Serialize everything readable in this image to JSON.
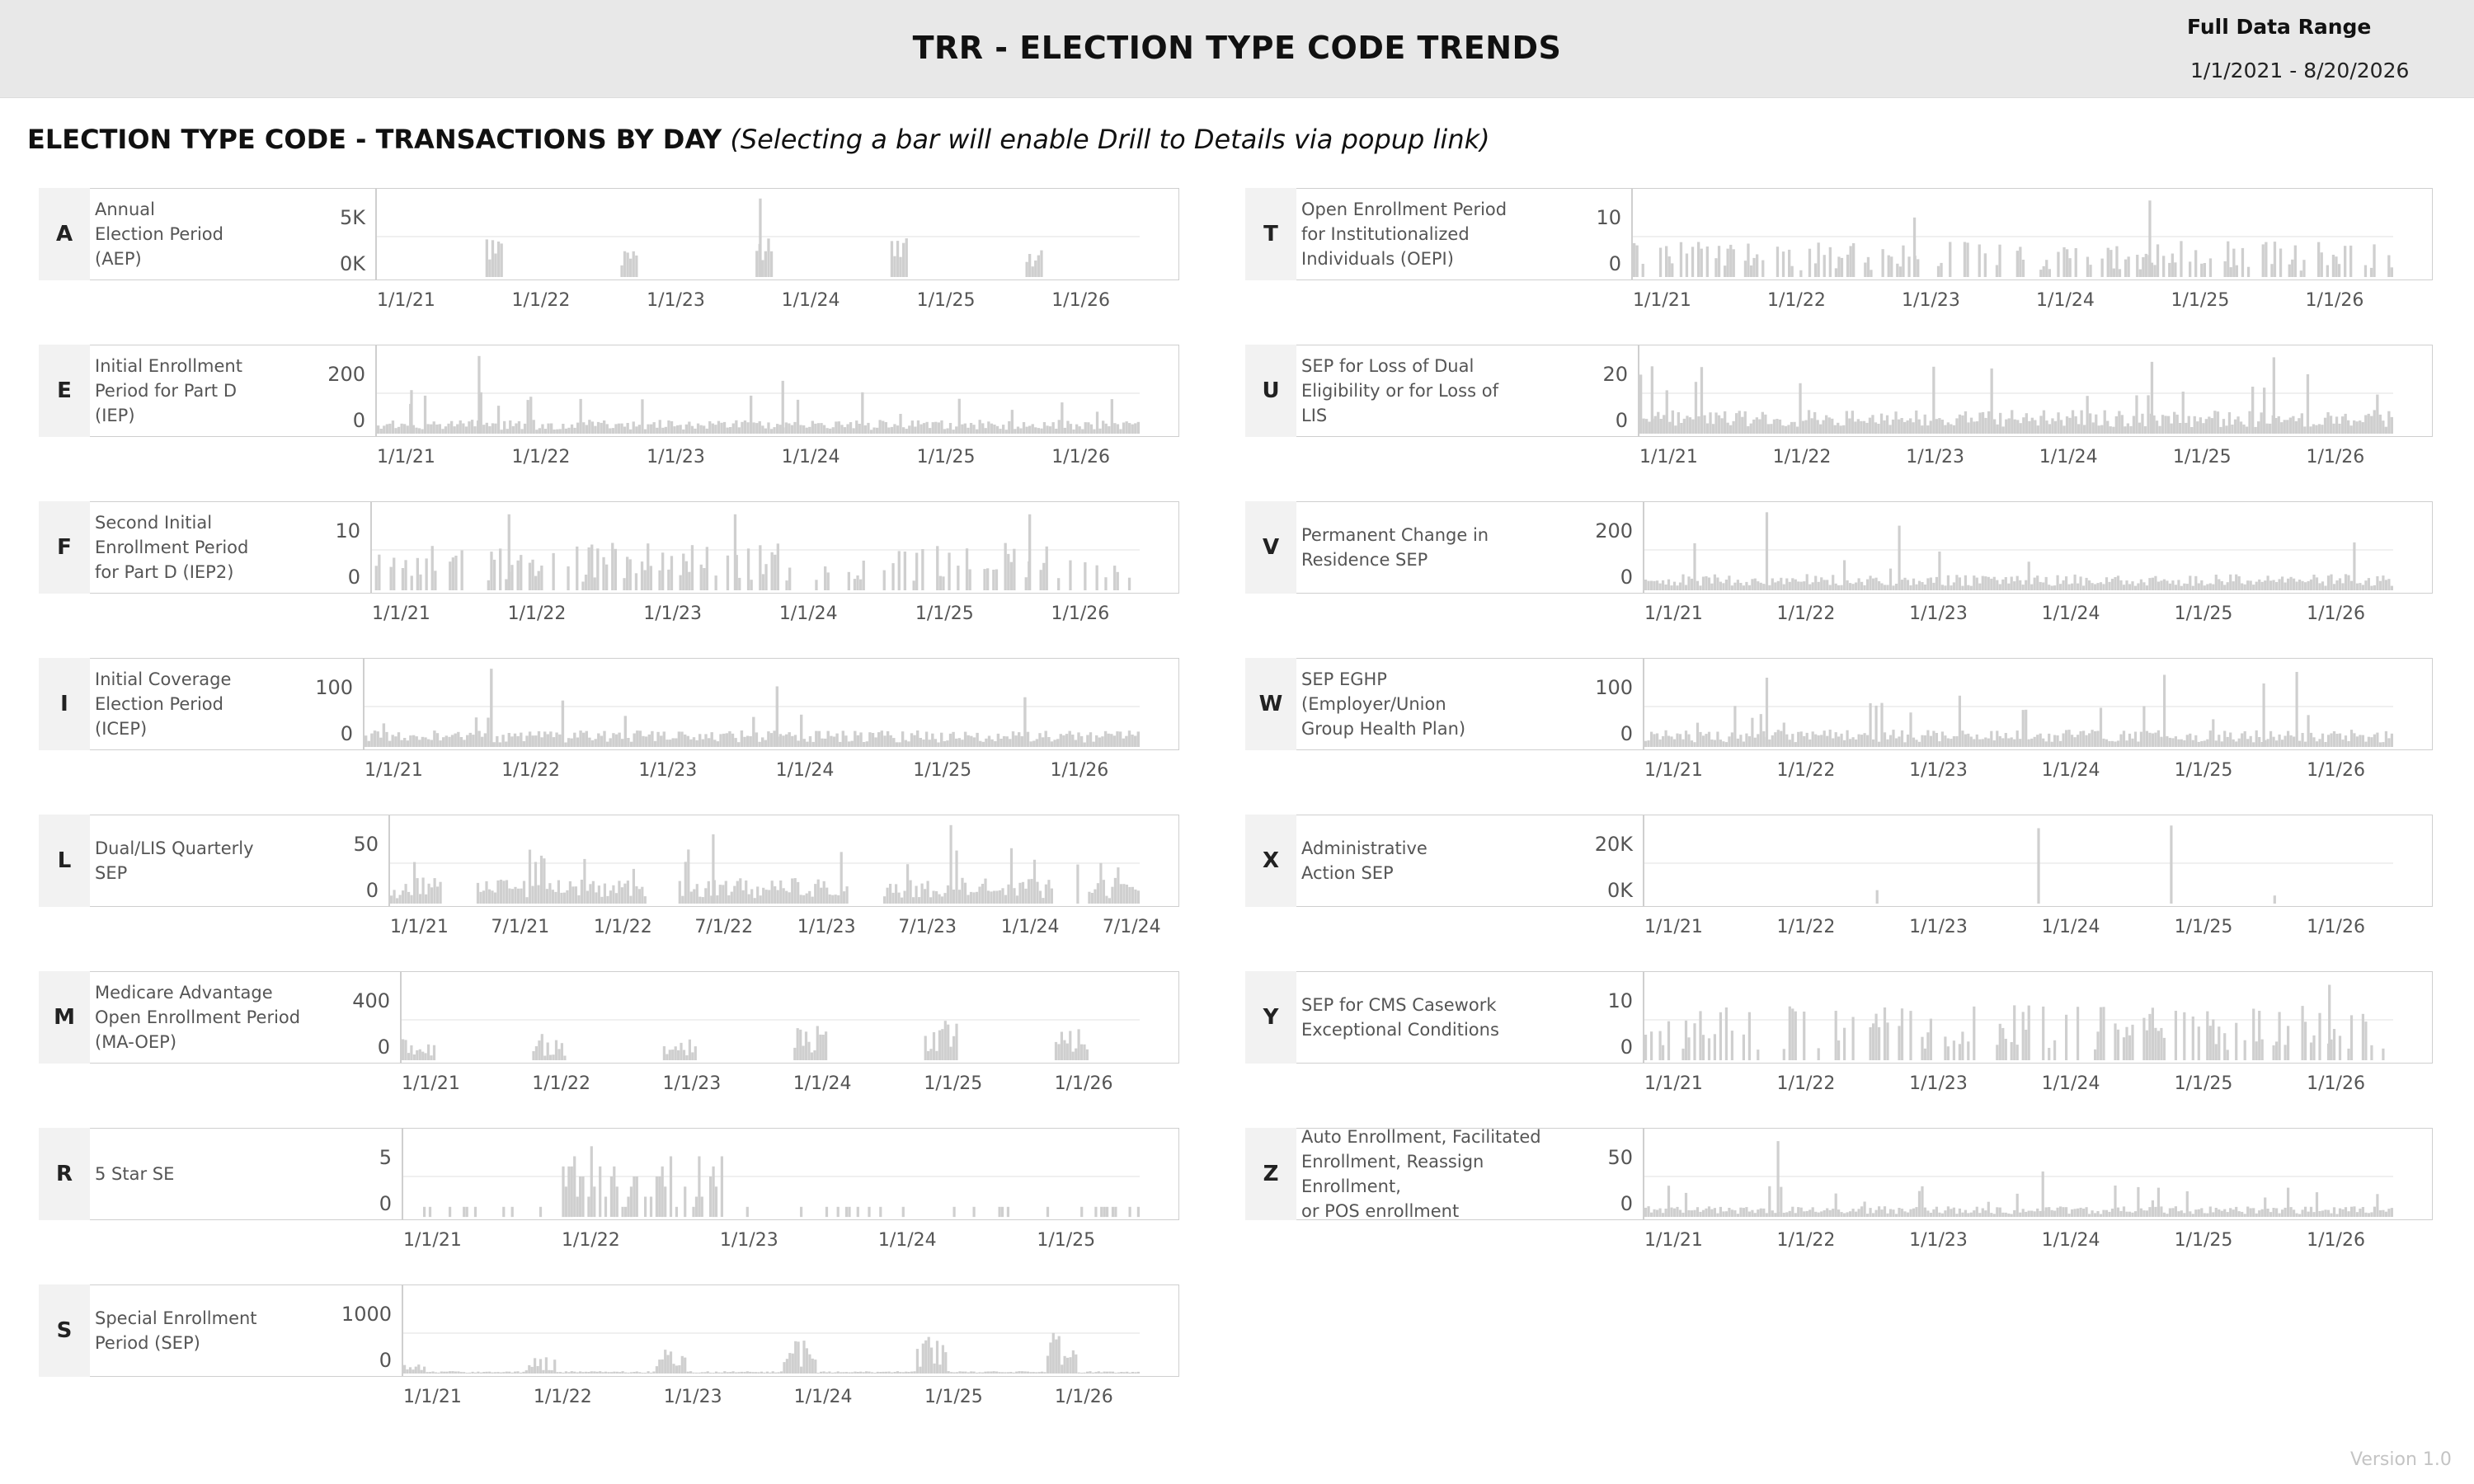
{
  "header": {
    "title": "TRR - ELECTION TYPE CODE TRENDS",
    "range_label": "Full Data Range",
    "range_value": "1/1/2021 - 8/20/2026"
  },
  "section": {
    "title": "ELECTION TYPE CODE - TRANSACTIONS BY DAY",
    "note": "(Selecting a bar will enable Drill to Details via popup link)"
  },
  "version": "Version 1.0",
  "colors": {
    "bar": "#cfcfcf",
    "grid": "#ebebeb",
    "border": "#cfcfcf",
    "header_bg": "#e8e8e8"
  },
  "chart_data": [
    {
      "type": "bar",
      "code": "A",
      "label": "Annual\nElection Period\n(AEP)",
      "yticks": [
        "5K",
        "0K"
      ],
      "ylim": [
        0,
        7000
      ],
      "xticks": [
        "1/1/21",
        "1/1/22",
        "1/1/23",
        "1/1/24",
        "1/1/25",
        "1/1/26"
      ],
      "x_range": [
        "1/1/21",
        "8/20/26"
      ],
      "pattern": "seasonal",
      "peak_max": 7000,
      "spikes": [
        {
          "x": "11/1/23",
          "value": 6800
        }
      ],
      "series": [
        {
          "values": []
        }
      ]
    },
    {
      "type": "bar",
      "code": "E",
      "label": "Initial Enrollment\nPeriod for Part D\n(IEP)",
      "yticks": [
        "200",
        "0"
      ],
      "ylim": [
        0,
        260
      ],
      "xticks": [
        "1/1/21",
        "1/1/22",
        "1/1/23",
        "1/1/24",
        "1/1/25",
        "1/1/26"
      ],
      "x_range": [
        "1/1/21",
        "8/20/26"
      ],
      "pattern": "dense",
      "base": 30,
      "spikes": [
        {
          "x": "10/1/21",
          "value": 250
        },
        {
          "x": "4/1/21",
          "value": 140
        },
        {
          "x": "1/1/24",
          "value": 170
        }
      ],
      "series": [
        {
          "values": []
        }
      ]
    },
    {
      "type": "bar",
      "code": "F",
      "label": "Second Initial\nEnrollment Period\nfor Part D (IEP2)",
      "yticks": [
        "10",
        "0"
      ],
      "ylim": [
        0,
        17
      ],
      "xticks": [
        "1/1/21",
        "1/1/22",
        "1/1/23",
        "1/1/24",
        "1/1/25",
        "1/1/26"
      ],
      "x_range": [
        "1/1/21",
        "8/20/26"
      ],
      "pattern": "sparse",
      "base": 6,
      "spikes": [
        {
          "x": "1/1/22",
          "value": 16
        },
        {
          "x": "9/1/23",
          "value": 16
        },
        {
          "x": "11/1/25",
          "value": 16
        }
      ],
      "series": [
        {
          "values": []
        }
      ]
    },
    {
      "type": "bar",
      "code": "I",
      "label": "Initial Coverage\nElection Period\n(ICEP)",
      "yticks": [
        "100",
        "0"
      ],
      "ylim": [
        0,
        160
      ],
      "xticks": [
        "1/1/21",
        "1/1/22",
        "1/1/23",
        "1/1/24",
        "1/1/25",
        "1/1/26"
      ],
      "x_range": [
        "1/1/21",
        "8/20/26"
      ],
      "pattern": "dense",
      "base": 22,
      "spikes": [
        {
          "x": "12/1/21",
          "value": 155
        },
        {
          "x": "1/1/24",
          "value": 120
        }
      ],
      "series": [
        {
          "values": []
        }
      ]
    },
    {
      "type": "bar",
      "code": "L",
      "label": "Dual/LIS Quarterly\nSEP",
      "yticks": [
        "50",
        "0"
      ],
      "ylim": [
        0,
        70
      ],
      "xticks": [
        "1/1/21",
        "7/1/21",
        "1/1/22",
        "7/1/22",
        "1/1/23",
        "7/1/23",
        "1/1/24",
        "7/1/24"
      ],
      "x_range": [
        "1/1/21",
        "9/1/24"
      ],
      "pattern": "dual",
      "base": 15,
      "spikes": [
        {
          "x": "8/1/22",
          "value": 60
        },
        {
          "x": "10/1/23",
          "value": 68
        }
      ],
      "series": [
        {
          "values": []
        }
      ]
    },
    {
      "type": "bar",
      "code": "M",
      "label": "Medicare Advantage\nOpen Enrollment Period\n(MA-OEP)",
      "yticks": [
        "400",
        "0"
      ],
      "ylim": [
        0,
        550
      ],
      "xticks": [
        "1/1/21",
        "1/1/22",
        "1/1/23",
        "1/1/24",
        "1/1/25",
        "1/1/26"
      ],
      "x_range": [
        "1/1/21",
        "8/20/26"
      ],
      "pattern": "oep",
      "peak_max": 540,
      "series": [
        {
          "values": []
        }
      ]
    },
    {
      "type": "bar",
      "code": "R",
      "label": "5 Star SE",
      "yticks": [
        "5",
        "0"
      ],
      "ylim": [
        0,
        8
      ],
      "xticks": [
        "1/1/21",
        "1/1/22",
        "1/1/23",
        "1/1/24",
        "1/1/25"
      ],
      "x_range": [
        "1/1/21",
        "8/20/25"
      ],
      "pattern": "fivestar",
      "series": [
        {
          "values": []
        }
      ]
    },
    {
      "type": "bar",
      "code": "S",
      "label": "Special Enrollment\nPeriod (SEP)",
      "yticks": [
        "1000",
        "0"
      ],
      "ylim": [
        0,
        1450
      ],
      "xticks": [
        "1/1/21",
        "1/1/22",
        "1/1/23",
        "1/1/24",
        "1/1/25",
        "1/1/26"
      ],
      "x_range": [
        "1/1/21",
        "8/20/26"
      ],
      "pattern": "sep",
      "peak_max": 1400,
      "series": [
        {
          "values": []
        }
      ]
    },
    {
      "type": "bar",
      "code": "T",
      "label": "Open Enrollment Period\nfor Institutionalized\nIndividuals (OEPI)",
      "yticks": [
        "10",
        "0"
      ],
      "ylim": [
        0,
        19
      ],
      "xticks": [
        "1/1/21",
        "1/1/22",
        "1/1/23",
        "1/1/24",
        "1/1/25",
        "1/1/26"
      ],
      "x_range": [
        "1/1/21",
        "8/20/26"
      ],
      "pattern": "sparse",
      "base": 5,
      "spikes": [
        {
          "x": "11/1/24",
          "value": 18
        },
        {
          "x": "2/1/23",
          "value": 14
        }
      ],
      "series": [
        {
          "values": []
        }
      ]
    },
    {
      "type": "bar",
      "code": "U",
      "label": "SEP for Loss of Dual\nEligibility or for Loss of\nLIS",
      "yticks": [
        "20",
        "0"
      ],
      "ylim": [
        0,
        36
      ],
      "xticks": [
        "1/1/21",
        "1/1/22",
        "1/1/23",
        "1/1/24",
        "1/1/25",
        "1/1/26"
      ],
      "x_range": [
        "1/1/21",
        "8/20/26"
      ],
      "pattern": "dense",
      "base": 7,
      "spikes": [
        {
          "x": "2/1/21",
          "value": 30
        },
        {
          "x": "11/1/24",
          "value": 32
        },
        {
          "x": "10/1/25",
          "value": 34
        }
      ],
      "series": [
        {
          "values": []
        }
      ]
    },
    {
      "type": "bar",
      "code": "V",
      "label": "Permanent Change in\nResidence SEP",
      "yticks": [
        "200",
        "0"
      ],
      "ylim": [
        0,
        300
      ],
      "xticks": [
        "1/1/21",
        "1/1/22",
        "1/1/23",
        "1/1/24",
        "1/1/25",
        "1/1/26"
      ],
      "x_range": [
        "1/1/21",
        "8/20/26"
      ],
      "pattern": "dense",
      "base": 40,
      "spikes": [
        {
          "x": "12/1/21",
          "value": 290
        },
        {
          "x": "12/1/22",
          "value": 240
        }
      ],
      "series": [
        {
          "values": []
        }
      ]
    },
    {
      "type": "bar",
      "code": "W",
      "label": "SEP EGHP\n(Employer/Union\nGroup Health Plan)",
      "yticks": [
        "100",
        "0"
      ],
      "ylim": [
        0,
        140
      ],
      "xticks": [
        "1/1/21",
        "1/1/22",
        "1/1/23",
        "1/1/24",
        "1/1/25",
        "1/1/26"
      ],
      "x_range": [
        "1/1/21",
        "8/20/26"
      ],
      "pattern": "dense",
      "base": 20,
      "spikes": [
        {
          "x": "12/1/21",
          "value": 120
        },
        {
          "x": "12/1/24",
          "value": 125
        },
        {
          "x": "12/1/25",
          "value": 130
        },
        {
          "x": "9/1/25",
          "value": 110
        }
      ],
      "series": [
        {
          "values": []
        }
      ]
    },
    {
      "type": "bar",
      "code": "X",
      "label": "Administrative\nAction SEP",
      "yticks": [
        "20K",
        "0K"
      ],
      "ylim": [
        0,
        30000
      ],
      "xticks": [
        "1/1/21",
        "1/1/22",
        "1/1/23",
        "1/1/24",
        "1/1/25",
        "1/1/26"
      ],
      "x_range": [
        "1/1/21",
        "8/20/26"
      ],
      "pattern": "rare",
      "spikes": [
        {
          "x": "12/20/23",
          "value": 28000
        },
        {
          "x": "12/20/24",
          "value": 29000
        },
        {
          "x": "10/1/22",
          "value": 5000
        },
        {
          "x": "10/1/25",
          "value": 3000
        }
      ],
      "series": [
        {
          "values": []
        }
      ]
    },
    {
      "type": "bar",
      "code": "Y",
      "label": "SEP for CMS Casework\nExceptional Conditions",
      "yticks": [
        "10",
        "0"
      ],
      "ylim": [
        0,
        15
      ],
      "xticks": [
        "1/1/21",
        "1/1/22",
        "1/1/23",
        "1/1/24",
        "1/1/25",
        "1/1/26"
      ],
      "x_range": [
        "1/1/21",
        "8/20/26"
      ],
      "pattern": "sparse",
      "base": 6,
      "spikes": [
        {
          "x": "3/1/26",
          "value": 14
        }
      ],
      "series": [
        {
          "values": []
        }
      ]
    },
    {
      "type": "bar",
      "code": "Z",
      "label": "Auto Enrollment, Facilitated\nEnrollment, Reassign Enrollment,\nor POS enrollment",
      "yticks": [
        "50",
        "0"
      ],
      "ylim": [
        0,
        80
      ],
      "xticks": [
        "1/1/21",
        "1/1/22",
        "1/1/23",
        "1/1/24",
        "1/1/25",
        "1/1/26"
      ],
      "x_range": [
        "1/1/21",
        "8/20/26"
      ],
      "pattern": "dense",
      "base": 7,
      "spikes": [
        {
          "x": "1/1/22",
          "value": 75
        },
        {
          "x": "1/1/24",
          "value": 45
        }
      ],
      "series": [
        {
          "values": []
        }
      ]
    }
  ]
}
